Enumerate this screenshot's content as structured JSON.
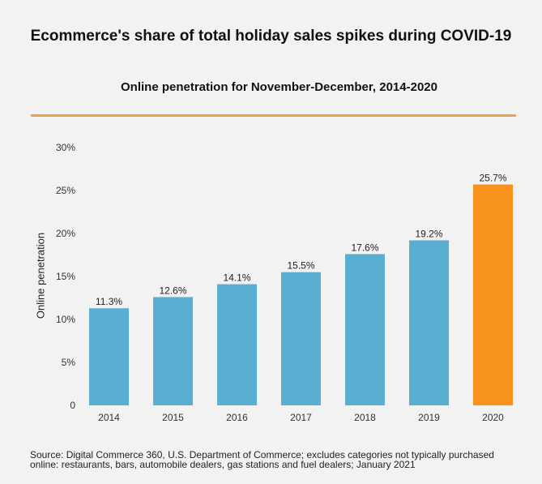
{
  "chart_data": {
    "type": "bar",
    "title": "Ecommerce's share of total holiday sales spikes during COVID-19",
    "subtitle": "Online penetration for November-December, 2014-2020",
    "xlabel": "",
    "ylabel": "Online penetration",
    "ylim": [
      0,
      30
    ],
    "yticks": [
      0,
      5,
      10,
      15,
      20,
      25,
      30
    ],
    "ytick_labels": [
      "0",
      "5%",
      "10%",
      "15%",
      "20%",
      "25%",
      "30%"
    ],
    "categories": [
      "2014",
      "2015",
      "2016",
      "2017",
      "2018",
      "2019",
      "2020"
    ],
    "values": [
      11.3,
      12.6,
      14.1,
      15.5,
      17.6,
      19.2,
      25.7
    ],
    "data_labels": [
      "11.3%",
      "12.6%",
      "14.1%",
      "15.5%",
      "17.6%",
      "19.2%",
      "25.7%"
    ],
    "colors": [
      "#5aaed2",
      "#5aaed2",
      "#5aaed2",
      "#5aaed2",
      "#5aaed2",
      "#5aaed2",
      "#f7921e"
    ],
    "grid": false
  },
  "accent_color": "#f0a04b",
  "source": "Source: Digital Commerce 360, U.S. Department of Commerce; excludes categories not typically purchased online: restaurants, bars, automobile dealers, gas stations and fuel dealers; January 2021"
}
